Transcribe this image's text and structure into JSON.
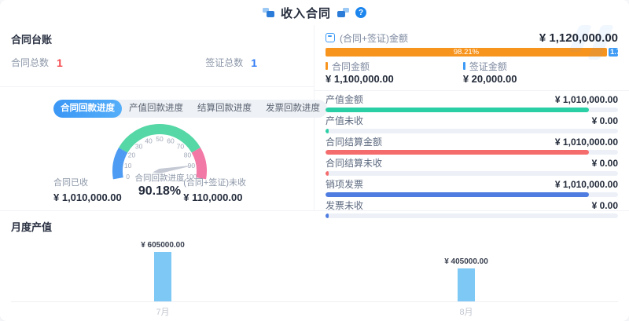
{
  "header": {
    "title": "收入合同",
    "help_icon": "?"
  },
  "ledger": {
    "title": "合同台账",
    "stats": [
      {
        "label": "合同总数",
        "value": "1",
        "color": "#F5484D"
      },
      {
        "label": "签证总数",
        "value": "1",
        "color": "#2F7BF5"
      }
    ]
  },
  "tabs": [
    {
      "label": "合同回款进度",
      "active": true
    },
    {
      "label": "产值回款进度",
      "active": false
    },
    {
      "label": "结算回款进度",
      "active": false
    },
    {
      "label": "发票回款进度",
      "active": false
    }
  ],
  "gauge": {
    "type": "gauge",
    "name": "合同回款进度",
    "value": 90.18,
    "value_label": "90.18%",
    "min": 0,
    "max": 100,
    "ticks": [
      0,
      10,
      20,
      30,
      40,
      50,
      60,
      70,
      80,
      90,
      100
    ],
    "segments": [
      {
        "from": 0,
        "to": 20,
        "color": "#4D9BF3"
      },
      {
        "from": 20,
        "to": 80,
        "color": "#55D7A6"
      },
      {
        "from": 80,
        "to": 100,
        "color": "#F278A5"
      }
    ],
    "needle_color": "#C4C9D4"
  },
  "received": [
    {
      "label": "合同已收",
      "value": "¥ 1,010,000.00"
    },
    {
      "label": "(合同+签证)未收",
      "value": "¥ 110,000.00"
    }
  ],
  "summary": {
    "label": "(合同+签证)金额",
    "value": "¥ 1,120,000.00",
    "bar": {
      "segments": [
        {
          "name": "合同金额",
          "percent": 98.21,
          "label": "98.21%",
          "color": "#F7941E"
        },
        {
          "name": "签证金额",
          "percent": 1.79,
          "label": "1.79%",
          "color": "#3D9AF5"
        }
      ]
    },
    "legend": [
      {
        "label": "合同金额",
        "value": "¥ 1,100,000.00",
        "color": "#F7941E"
      },
      {
        "label": "签证金额",
        "value": "¥ 20,000.00",
        "color": "#3D9AF5"
      }
    ]
  },
  "metrics": [
    {
      "label": "产值金额",
      "value": "¥ 1,010,000.00",
      "bar_percent": 90.18,
      "color": "#2BCFA5"
    },
    {
      "label": "产值未收",
      "value": "¥ 0.00",
      "bar_percent": 1,
      "color": "#2BCFA5"
    },
    {
      "label": "合同结算金额",
      "value": "¥ 1,010,000.00",
      "bar_percent": 90.18,
      "color": "#F56C6C"
    },
    {
      "label": "合同结算未收",
      "value": "¥ 0.00",
      "bar_percent": 1,
      "color": "#F56C6C"
    },
    {
      "label": "销项发票",
      "value": "¥ 1,010,000.00",
      "bar_percent": 90.18,
      "color": "#4E7CE0"
    },
    {
      "label": "发票未收",
      "value": "¥ 0.00",
      "bar_percent": 1,
      "color": "#4E7CE0"
    }
  ],
  "monthly": {
    "title": "月度产值",
    "chart_data": {
      "type": "bar",
      "categories": [
        "7月",
        "8月"
      ],
      "values": [
        605000,
        405000
      ],
      "value_labels": [
        "¥ 605000.00",
        "¥ 405000.00"
      ],
      "bar_color": "#7EC8F5",
      "ylim": [
        0,
        605000
      ],
      "grid": false
    }
  }
}
